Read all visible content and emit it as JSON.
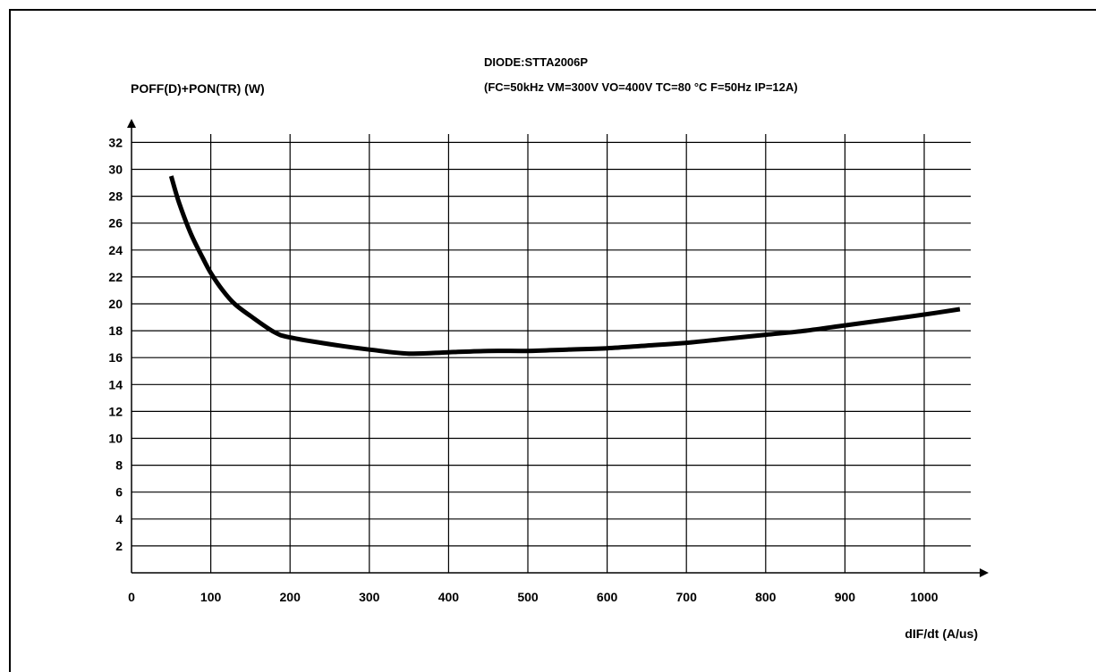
{
  "chart_data": {
    "type": "line",
    "title": "DIODE:STTA2006P",
    "subtitle": "(FC=50kHz  VM=300V  VO=400V  TC=80 °C  F=50Hz  IP=12A)",
    "ylabel": "POFF(D)+PON(TR)  (W)",
    "xlabel": "dIF/dt (A/us)",
    "xlim": [
      0,
      1050
    ],
    "ylim": [
      0,
      32
    ],
    "x_ticks": [
      0,
      100,
      200,
      300,
      400,
      500,
      600,
      700,
      800,
      900,
      1000
    ],
    "y_ticks": [
      2,
      4,
      6,
      8,
      10,
      12,
      14,
      16,
      18,
      20,
      22,
      24,
      26,
      28,
      30,
      32
    ],
    "grid": true,
    "series": [
      {
        "x": [
          50,
          60,
          75,
          90,
          100,
          115,
          130,
          150,
          180,
          200,
          250,
          300,
          350,
          400,
          450,
          500,
          550,
          600,
          650,
          700,
          750,
          800,
          850,
          900,
          950,
          1000,
          1045
        ],
        "y": [
          29.5,
          27.5,
          25.2,
          23.4,
          22.3,
          21.0,
          20.0,
          19.1,
          17.9,
          17.5,
          17.0,
          16.6,
          16.3,
          16.4,
          16.5,
          16.5,
          16.6,
          16.7,
          16.9,
          17.1,
          17.4,
          17.7,
          18.0,
          18.4,
          18.8,
          19.2,
          19.6
        ]
      }
    ],
    "colors": {
      "line": "#000000",
      "grid": "#000000"
    }
  }
}
